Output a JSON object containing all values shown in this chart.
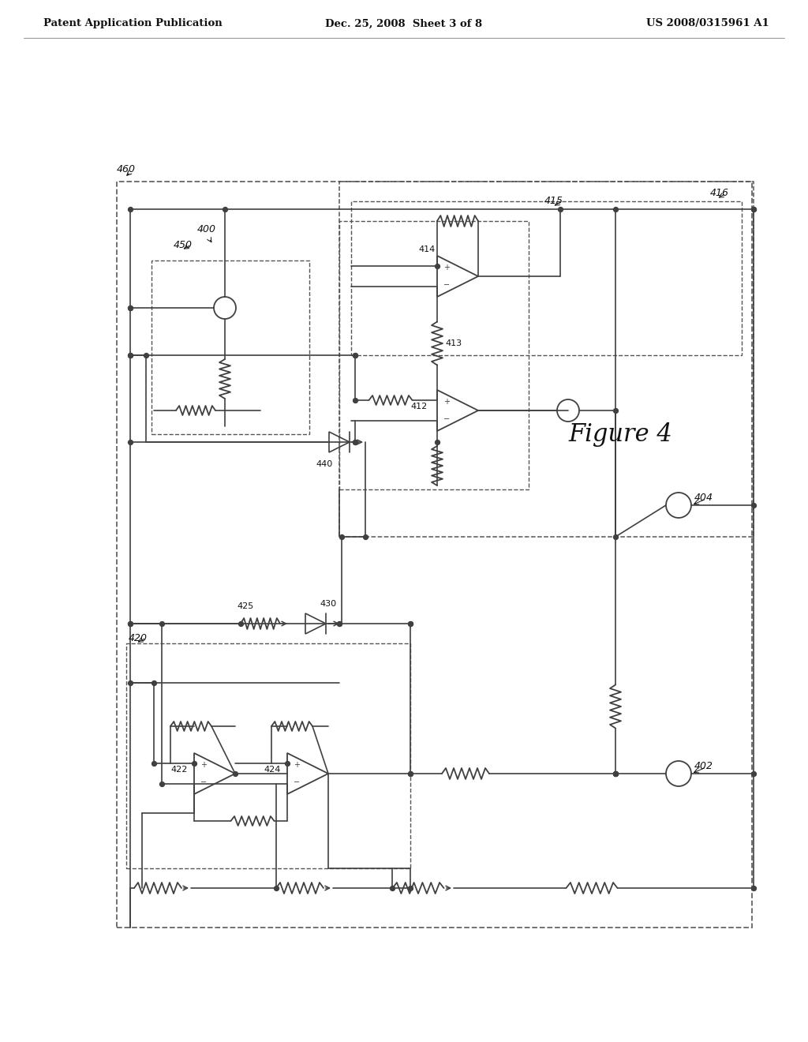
{
  "header_left": "Patent Application Publication",
  "header_mid": "Dec. 25, 2008  Sheet 3 of 8",
  "header_right": "US 2008/0315961 A1",
  "figure_label": "Figure 4",
  "background_color": "#ffffff",
  "line_color": "#404040",
  "text_color": "#111111"
}
